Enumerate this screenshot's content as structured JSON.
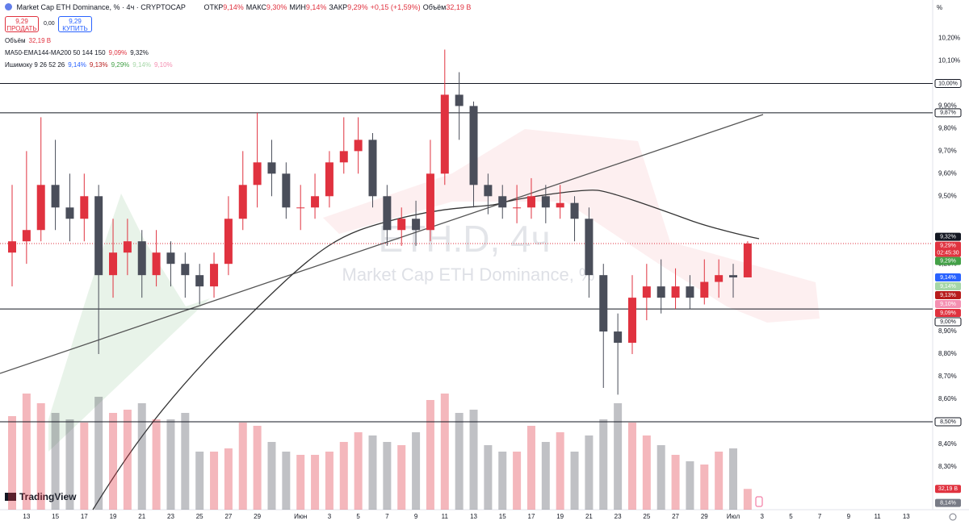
{
  "header": {
    "symbol": "Market Cap ETH Dominance, % · 4ч · CRYPTOCAP",
    "ohlc": [
      {
        "label": "ОТКР",
        "value": "9,14%"
      },
      {
        "label": "МАКС",
        "value": "9,30%"
      },
      {
        "label": "МИН",
        "value": "9,14%"
      },
      {
        "label": "ЗАКР",
        "value": "9,29%"
      }
    ],
    "change": "+0,15 (+1,59%)",
    "volume_label": "Объём",
    "volume": "32,19 B"
  },
  "trade": {
    "sell_price": "9,29",
    "sell": "ПРОДАТЬ",
    "spread": "0,00",
    "buy_price": "9,29",
    "buy": "КУПИТЬ"
  },
  "indicators": [
    {
      "name": "Объём",
      "values": [
        "32,19 B"
      ],
      "colors": [
        "#e0323f"
      ]
    },
    {
      "name": "MA50-EMA144-MA200 50 144 150",
      "values": [
        "9,09%",
        "9,32%"
      ],
      "colors": [
        "#e0323f",
        "#131722"
      ]
    },
    {
      "name": "Ишимоку 9 26 52 26",
      "values": [
        "9,14%",
        "9,13%",
        "9,29%",
        "9,14%",
        "9,10%"
      ],
      "colors": [
        "#2962ff",
        "#b71c1c",
        "#43a047",
        "#a5d6a7",
        "#f48fb1"
      ]
    }
  ],
  "watermark": {
    "ticker": "ETH.D, 4ч",
    "name": "Market Cap ETH Dominance, %"
  },
  "axis_unit": "%",
  "logo": "TradingView",
  "chart_data": {
    "type": "candlestick",
    "grid": false,
    "up_color": "#e0323f",
    "down_color": "#4a4e5a",
    "categories": [
      null,
      "13",
      null,
      "15",
      null,
      "17",
      null,
      "19",
      null,
      "21",
      null,
      "23",
      null,
      "25",
      null,
      "27",
      null,
      "29",
      null,
      null,
      "Июн",
      null,
      "3",
      null,
      "5",
      null,
      "7",
      null,
      "9",
      null,
      "11",
      null,
      "13",
      null,
      "15",
      null,
      "17",
      null,
      "19",
      null,
      "21",
      null,
      "23",
      null,
      "25",
      null,
      "27",
      null,
      "29",
      null,
      "Июл",
      null,
      "3",
      null,
      "5",
      null,
      "7",
      null,
      "9",
      null,
      "11",
      null,
      "13"
    ],
    "open": [
      9.25,
      9.3,
      9.35,
      9.55,
      9.45,
      9.4,
      9.5,
      9.15,
      9.25,
      9.3,
      9.15,
      9.25,
      9.2,
      9.15,
      9.1,
      9.2,
      9.4,
      9.55,
      9.65,
      9.6,
      9.45,
      9.45,
      9.5,
      9.65,
      9.7,
      9.75,
      9.5,
      9.35,
      9.4,
      9.35,
      9.6,
      9.95,
      9.9,
      9.55,
      9.5,
      9.45,
      9.45,
      9.5,
      9.45,
      9.47,
      9.4,
      9.15,
      8.9,
      8.85,
      9.05,
      9.1,
      9.05,
      9.1,
      9.05,
      9.12,
      9.15,
      9.14,
      null,
      null,
      null,
      null,
      null,
      null,
      null,
      null,
      null,
      null,
      null
    ],
    "high": [
      9.55,
      9.7,
      9.85,
      9.75,
      9.6,
      9.6,
      9.55,
      9.4,
      9.4,
      9.35,
      9.35,
      9.3,
      9.25,
      9.2,
      9.25,
      9.5,
      9.7,
      9.87,
      9.75,
      9.65,
      9.55,
      9.6,
      9.7,
      9.85,
      9.85,
      9.78,
      9.55,
      9.45,
      9.48,
      9.75,
      10.15,
      10.05,
      9.92,
      9.6,
      9.55,
      9.55,
      9.58,
      9.55,
      9.55,
      9.5,
      9.45,
      9.2,
      8.98,
      9.15,
      9.2,
      9.22,
      9.18,
      9.15,
      9.22,
      9.22,
      9.2,
      9.3,
      null,
      null,
      null,
      null,
      null,
      null,
      null,
      null,
      null,
      null,
      null
    ],
    "low": [
      9.1,
      9.2,
      9.3,
      9.35,
      9.3,
      9.3,
      8.8,
      9.05,
      9.15,
      9.05,
      9.1,
      9.1,
      9.05,
      9.02,
      9.05,
      9.15,
      9.35,
      9.45,
      9.5,
      9.4,
      9.35,
      9.4,
      9.45,
      9.6,
      9.6,
      9.45,
      9.28,
      9.28,
      9.28,
      9.3,
      9.55,
      9.75,
      9.45,
      9.42,
      9.4,
      9.38,
      9.4,
      9.38,
      9.4,
      9.3,
      9.05,
      8.65,
      8.62,
      8.8,
      8.95,
      8.98,
      9.0,
      9.0,
      9.02,
      9.05,
      9.05,
      9.14,
      null,
      null,
      null,
      null,
      null,
      null,
      null,
      null,
      null,
      null,
      null
    ],
    "close": [
      9.3,
      9.35,
      9.55,
      9.45,
      9.4,
      9.5,
      9.15,
      9.25,
      9.3,
      9.15,
      9.25,
      9.2,
      9.15,
      9.1,
      9.2,
      9.4,
      9.55,
      9.65,
      9.6,
      9.45,
      9.45,
      9.5,
      9.65,
      9.7,
      9.75,
      9.5,
      9.35,
      9.4,
      9.35,
      9.6,
      9.95,
      9.9,
      9.55,
      9.5,
      9.45,
      9.45,
      9.5,
      9.45,
      9.47,
      9.4,
      9.15,
      8.9,
      8.85,
      9.05,
      9.1,
      9.05,
      9.1,
      9.05,
      9.12,
      9.15,
      9.14,
      9.29,
      null,
      null,
      null,
      null,
      null,
      null,
      null,
      null,
      null,
      null,
      null
    ],
    "volume": [
      145,
      180,
      165,
      150,
      140,
      135,
      175,
      150,
      155,
      165,
      140,
      140,
      150,
      90,
      90,
      95,
      135,
      130,
      105,
      90,
      85,
      85,
      90,
      105,
      120,
      115,
      105,
      100,
      120,
      170,
      180,
      150,
      155,
      100,
      90,
      90,
      130,
      105,
      120,
      90,
      115,
      140,
      165,
      135,
      115,
      100,
      85,
      75,
      70,
      90,
      95,
      32.19,
      null,
      null,
      null,
      null,
      null,
      null,
      null,
      null,
      null,
      null,
      null
    ],
    "volume_label": "32,19 B",
    "vlim": [
      0,
      200
    ],
    "ylim": [
      8.11,
      10.37
    ],
    "yticks": [
      {
        "value": 10.2,
        "label": "10,20%"
      },
      {
        "value": 10.1,
        "label": "10,10%"
      },
      {
        "value": 9.9,
        "label": "9,90%"
      },
      {
        "value": 9.8,
        "label": "9,80%"
      },
      {
        "value": 9.7,
        "label": "9,70%"
      },
      {
        "value": 9.6,
        "label": "9,60%"
      },
      {
        "value": 9.5,
        "label": "9,50%"
      },
      {
        "value": 9.2,
        "label": "9,20%"
      },
      {
        "value": 8.9,
        "label": "8,90%"
      },
      {
        "value": 8.8,
        "label": "8,80%"
      },
      {
        "value": 8.7,
        "label": "8,70%"
      },
      {
        "value": 8.6,
        "label": "8,60%"
      },
      {
        "value": 8.4,
        "label": "8,40%"
      },
      {
        "value": 8.3,
        "label": "8,30%"
      },
      {
        "value": 8.2,
        "label": "8,20%"
      }
    ],
    "levels": [
      {
        "value": 10.0,
        "label": "10,00%"
      },
      {
        "value": 9.87,
        "label": "9,87%"
      },
      {
        "value": 9.0,
        "label": "9,00%"
      },
      {
        "value": 8.5,
        "label": "8,50%"
      }
    ],
    "price_labels": [
      {
        "value": 9.32,
        "label": "9,32%",
        "color": "#131722"
      },
      {
        "value": 9.29,
        "label": "9,29%",
        "color": "#e0323f",
        "countdown": "02:45:30"
      },
      {
        "value": 9.29,
        "label": "9,29%",
        "color": "#43a047"
      },
      {
        "value": 9.14,
        "label": "9,14%",
        "color": "#2962ff"
      },
      {
        "value": 9.14,
        "label": "9,14%",
        "color": "#a5d6a7"
      },
      {
        "value": 9.13,
        "label": "9,13%",
        "color": "#b71c1c"
      },
      {
        "value": 9.1,
        "label": "9,10%",
        "color": "#f48fb1"
      },
      {
        "value": 9.09,
        "label": "9,09%",
        "color": "#e0323f"
      },
      {
        "value": 8.14,
        "label": "8,14%",
        "color": "#787b86"
      }
    ]
  }
}
